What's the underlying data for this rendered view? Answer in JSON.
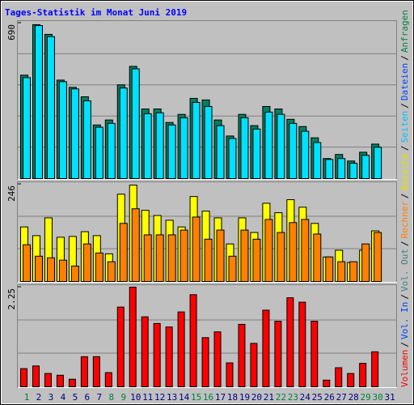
{
  "title": "Tages-Statistik im Monat Juni 2019",
  "separator": "/",
  "categories": [
    "1",
    "2",
    "3",
    "4",
    "5",
    "6",
    "7",
    "8",
    "9",
    "10",
    "11",
    "12",
    "13",
    "14",
    "15",
    "16",
    "17",
    "18",
    "19",
    "20",
    "21",
    "22",
    "23",
    "24",
    "25",
    "26",
    "27",
    "28",
    "29",
    "30",
    "31"
  ],
  "category_colors": [
    "#008040",
    "#000080",
    "#000080",
    "#000080",
    "#000080",
    "#000080",
    "#000080",
    "#008040",
    "#008040",
    "#000080",
    "#000080",
    "#000080",
    "#000080",
    "#000080",
    "#008040",
    "#008040",
    "#000080",
    "#000080",
    "#000080",
    "#000080",
    "#000080",
    "#008040",
    "#008040",
    "#000080",
    "#000080",
    "#000080",
    "#000080",
    "#000080",
    "#008040",
    "#008040",
    "#000080"
  ],
  "chart_data": [
    {
      "type": "bar",
      "ylim": [
        0,
        690
      ],
      "yticks": [
        690
      ],
      "legend": [
        {
          "name": "Anfragen",
          "color": "#008040"
        },
        {
          "name": "Dateien",
          "color": "#0040ff"
        },
        {
          "name": "Seiten",
          "color": "#00c0ff"
        }
      ],
      "series": [
        {
          "color": "#008060",
          "values": [
            459,
            683,
            640,
            437,
            405,
            363,
            238,
            260,
            416,
            498,
            309,
            309,
            249,
            285,
            356,
            349,
            260,
            189,
            285,
            235,
            320,
            309,
            263,
            231,
            181,
            89,
            107,
            78,
            117,
            153,
            0
          ]
        },
        {
          "color": "#00e0ff",
          "values": [
            448,
            679,
            630,
            430,
            398,
            345,
            228,
            245,
            402,
            487,
            288,
            292,
            238,
            270,
            338,
            320,
            235,
            178,
            270,
            220,
            295,
            285,
            245,
            210,
            160,
            85,
            89,
            68,
            103,
            139,
            0
          ]
        }
      ]
    },
    {
      "type": "bar",
      "ylim": [
        0,
        246
      ],
      "yticks": [
        246
      ],
      "legend": [
        {
          "name": "Besuche",
          "color": "#e0e000"
        },
        {
          "name": "Rechner",
          "color": "#ff8000"
        }
      ],
      "series": [
        {
          "color": "#ffff00",
          "values": [
            138,
            116,
            161,
            112,
            114,
            126,
            116,
            70,
            221,
            244,
            180,
            167,
            155,
            138,
            215,
            178,
            161,
            95,
            161,
            124,
            198,
            174,
            207,
            188,
            147,
            62,
            79,
            48,
            79,
            128,
            0
          ]
        },
        {
          "color": "#ff8000",
          "values": [
            93,
            64,
            60,
            54,
            39,
            95,
            72,
            50,
            147,
            184,
            118,
            118,
            118,
            130,
            163,
            107,
            130,
            64,
            130,
            107,
            157,
            124,
            149,
            157,
            120,
            62,
            50,
            50,
            95,
            124,
            0
          ]
        }
      ]
    },
    {
      "type": "bar",
      "ylim": [
        0,
        2.25
      ],
      "yticks": [
        2.25
      ],
      "legend": [
        {
          "name": "Vol. Out",
          "color": "#408080"
        },
        {
          "name": "Vol. In",
          "color": "#0040ff"
        },
        {
          "name": "Volumen",
          "color": "#ff0000"
        }
      ],
      "series": [
        {
          "color": "#ff0000",
          "values": [
            0.41,
            0.47,
            0.3,
            0.26,
            0.17,
            0.68,
            0.68,
            0.32,
            1.8,
            2.25,
            1.58,
            1.43,
            1.35,
            1.69,
            2.08,
            1.11,
            1.24,
            0.54,
            1.41,
            0.98,
            1.73,
            1.48,
            2.01,
            1.91,
            1.48,
            0.15,
            0.43,
            0.3,
            0.53,
            0.79,
            0
          ]
        }
      ]
    }
  ]
}
